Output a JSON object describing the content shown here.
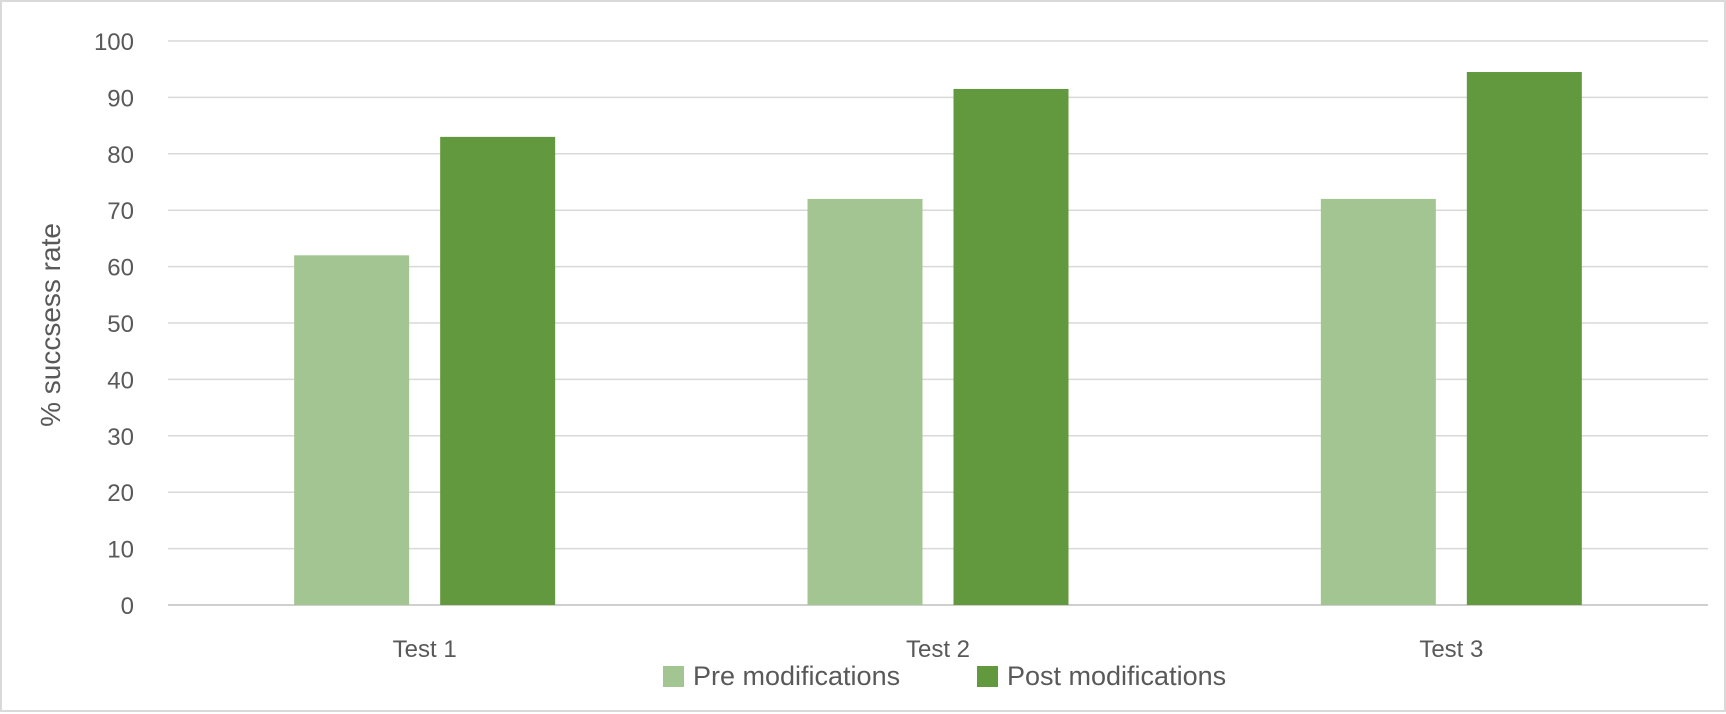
{
  "chart_data": {
    "type": "bar",
    "title": "",
    "xlabel": "",
    "ylabel": "% succsess rate",
    "ylim": [
      0,
      100
    ],
    "yticks": [
      0,
      10,
      20,
      30,
      40,
      50,
      60,
      70,
      80,
      90,
      100
    ],
    "categories": [
      "Test 1",
      "Test 2",
      "Test 3"
    ],
    "series": [
      {
        "name": "Pre modifications",
        "color": "#a2c591",
        "values": [
          62,
          72,
          72
        ]
      },
      {
        "name": "Post modifications",
        "color": "#62983e",
        "values": [
          83,
          91.5,
          94.5
        ]
      }
    ],
    "grid": true,
    "legend_position": "bottom"
  }
}
